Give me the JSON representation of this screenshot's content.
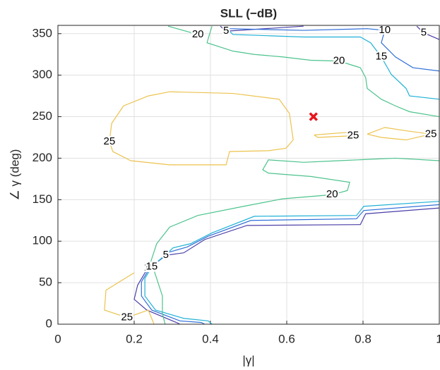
{
  "chart_data": {
    "type": "contour",
    "title": "SLL (−dB)",
    "xlabel": "|γ|",
    "ylabel": "∠ γ (deg)",
    "xlim": [
      0,
      1
    ],
    "xticks": [
      0,
      0.2,
      0.4,
      0.6,
      0.8,
      1
    ],
    "ylim": [
      0,
      360
    ],
    "yticks": [
      0,
      50,
      100,
      150,
      200,
      250,
      300,
      350
    ],
    "grid": true,
    "series": [
      {
        "level": 5,
        "color": "#4a3fa8",
        "lines": [
          {
            "x": [
              1,
              0.807,
              0.793,
              0.496,
              0.385,
              0.33,
              0.283,
              0.231,
              0.209,
              0.2,
              0.233,
              0.311,
              0.32
            ],
            "y": [
              140,
              133,
              120,
              119,
              102,
              86,
              83,
              64,
              47,
              30,
              17,
              2,
              0
            ]
          },
          {
            "x": [
              0.426,
              0.441,
              0.644
            ],
            "y": [
              359,
              353,
              359
            ]
          },
          {
            "x": [
              0.941,
              0.959,
              1
            ],
            "y": [
              359,
              351,
              343
            ]
          }
        ]
      },
      {
        "level": 10,
        "color": "#2f6fd8",
        "lines": [
          {
            "x": [
              1,
              0.802,
              0.783,
              0.506,
              0.394,
              0.339,
              0.293,
              0.241,
              0.219,
              0.219,
              0.246,
              0.32,
              0.376,
              0.385
            ],
            "y": [
              144,
              137,
              127,
              125,
              106,
              93,
              87,
              68,
              51,
              34,
              17,
              4,
              2,
              0
            ]
          },
          {
            "x": [
              0.433,
              0.45,
              0.644,
              0.811,
              0.857,
              0.848,
              0.885,
              0.931,
              1
            ],
            "y": [
              359,
              356,
              354,
              356,
              354,
              339,
              322,
              309,
              305
            ]
          }
        ]
      },
      {
        "level": 15,
        "color": "#1fb1d6",
        "lines": [
          {
            "x": [
              1,
              0.802,
              0.783,
              0.515,
              0.404,
              0.348,
              0.302,
              0.246,
              0.228,
              0.228,
              0.256,
              0.33,
              0.394,
              0.404
            ],
            "y": [
              148,
              142,
              131,
              130,
              110,
              97,
              92,
              69,
              55,
              34,
              17,
              7,
              4,
              0
            ]
          },
          {
            "x": [
              0.437,
              0.459,
              0.644,
              0.793,
              0.82,
              0.848,
              0.874,
              0.913,
              0.922,
              1
            ],
            "y": [
              359,
              349,
              346,
              346,
              339,
              322,
              301,
              284,
              275,
              271
            ]
          }
        ]
      },
      {
        "level": 20,
        "color": "#4cc38c",
        "lines": [
          {
            "x": [
              0.289,
              0.367
            ],
            "y": [
              359,
              349
            ]
          },
          {
            "x": [
              0.404,
              0.396,
              0.391,
              0.459,
              0.515,
              0.589,
              0.663,
              0.737,
              0.793,
              0.807,
              0.811,
              0.848,
              0.885,
              0.922,
              1
            ],
            "y": [
              359,
              347,
              339,
              329,
              325,
              322,
              318,
              317,
              309,
              297,
              284,
              271,
              263,
              256,
              250
            ]
          },
          {
            "x": [
              1,
              0.885,
              0.737,
              0.644,
              0.552,
              0.537,
              0.552,
              0.663,
              0.765,
              0.759,
              0.719,
              0.589,
              0.487,
              0.367,
              0.293,
              0.259,
              0.244,
              0.274,
              0.274,
              0.281
            ],
            "y": [
              197,
              200,
              197,
              195,
              198,
              186,
              182,
              178,
              171,
              161,
              156,
              151,
              142,
              131,
              117,
              97,
              76,
              34,
              13,
              0
            ]
          }
        ]
      },
      {
        "level": 25,
        "color": "#ecc24e",
        "lines": [
          {
            "x": [
              0.617,
              0.607,
              0.58,
              0.459,
              0.293,
              0.237,
              0.172,
              0.141,
              0.135,
              0.144,
              0.191,
              0.293,
              0.441,
              0.45,
              0.552,
              0.598,
              0.617
            ],
            "y": [
              222,
              254,
              271,
              278,
              280,
              275,
              263,
              242,
              220,
              208,
              197,
              192,
              192,
              208,
              209,
              212,
              222
            ]
          },
          {
            "x": [
              0.672,
              0.756,
              0.774,
              0.681,
              0.672
            ],
            "y": [
              228,
              231,
              227,
              225,
              228
            ]
          },
          {
            "x": [
              0.811,
              0.857,
              0.913,
              0.978,
              0.913,
              0.848,
              0.811
            ],
            "y": [
              229,
              237,
              233,
              229,
              222,
              225,
              229
            ]
          },
          {
            "x": [
              0.2,
              0.126,
              0.122,
              0.181,
              0.237,
              0.252
            ],
            "y": [
              62,
              41,
              17,
              8,
              17,
              0
            ]
          }
        ]
      }
    ],
    "marker": {
      "x": 0.67,
      "y": 250,
      "color": "#e8141b"
    }
  }
}
